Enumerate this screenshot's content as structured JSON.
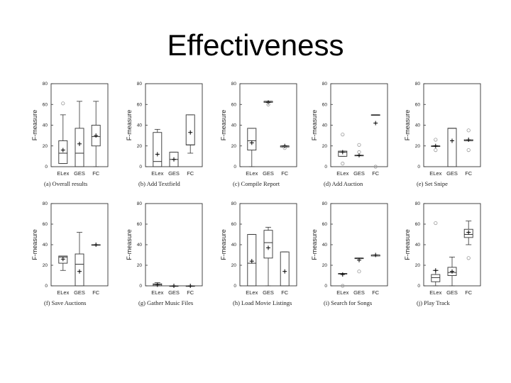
{
  "slide": {
    "title": "Effectiveness"
  },
  "colors": {
    "stroke": "#333333",
    "outlier": "#999999",
    "text": "#222222"
  },
  "chart_data": [
    {
      "type": "boxplot",
      "caption": "(a) Overall results",
      "ylabel": "F-measure",
      "ylim": [
        0,
        80
      ],
      "yticks": [
        0,
        20,
        40,
        60,
        80
      ],
      "categories": [
        "ELex",
        "GES",
        "FC"
      ],
      "boxes": [
        {
          "min": 3,
          "q1": 3,
          "median": 13,
          "q3": 25,
          "max": 50,
          "mean": 16,
          "outliers": [
            61
          ]
        },
        {
          "min": 0,
          "q1": 0,
          "median": 13,
          "q3": 37,
          "max": 63,
          "mean": 22,
          "outliers": []
        },
        {
          "min": 0,
          "q1": 20,
          "median": 29,
          "q3": 40,
          "max": 63,
          "mean": 30,
          "outliers": []
        }
      ]
    },
    {
      "type": "boxplot",
      "caption": "(b) Add Textfield",
      "ylabel": "F-measure",
      "ylim": [
        0,
        80
      ],
      "yticks": [
        0,
        20,
        40,
        60,
        80
      ],
      "categories": [
        "ELex",
        "GES",
        "FC"
      ],
      "boxes": [
        {
          "min": 0,
          "q1": 0,
          "median": 5,
          "q3": 33,
          "max": 36,
          "mean": 12,
          "outliers": []
        },
        {
          "min": 0,
          "q1": 0,
          "median": 7,
          "q3": 14,
          "max": 14,
          "mean": 7,
          "outliers": []
        },
        {
          "min": 13,
          "q1": 21,
          "median": 21,
          "q3": 50,
          "max": 50,
          "mean": 33,
          "outliers": []
        }
      ]
    },
    {
      "type": "boxplot",
      "caption": "(c) Compile Report",
      "ylabel": "F-measure",
      "ylim": [
        0,
        80
      ],
      "yticks": [
        0,
        20,
        40,
        60,
        80
      ],
      "categories": [
        "ELex",
        "GES",
        "FC"
      ],
      "boxes": [
        {
          "min": 0,
          "q1": 16,
          "median": 25,
          "q3": 37,
          "max": 37,
          "mean": 23,
          "outliers": []
        },
        {
          "min": 62,
          "q1": 62,
          "median": 63,
          "q3": 63,
          "max": 63,
          "mean": 62,
          "outliers": [
            60
          ]
        },
        {
          "min": 19,
          "q1": 19,
          "median": 20,
          "q3": 20,
          "max": 20,
          "mean": 20,
          "outliers": [
            18
          ]
        }
      ]
    },
    {
      "type": "boxplot",
      "caption": "(d) Add Auction",
      "ylabel": "F-measure",
      "ylim": [
        0,
        80
      ],
      "yticks": [
        0,
        20,
        40,
        60,
        80
      ],
      "categories": [
        "ELex",
        "GES",
        "FC"
      ],
      "boxes": [
        {
          "min": 10,
          "q1": 10,
          "median": 14,
          "q3": 15,
          "max": 15,
          "mean": 14,
          "outliers": [
            31,
            3
          ]
        },
        {
          "min": 11,
          "q1": 11,
          "median": 11,
          "q3": 11,
          "max": 11,
          "mean": 11,
          "outliers": [
            21,
            14
          ]
        },
        {
          "min": 50,
          "q1": 50,
          "median": 50,
          "q3": 50,
          "max": 50,
          "mean": 42,
          "outliers": [
            0
          ]
        }
      ]
    },
    {
      "type": "boxplot",
      "caption": "(e) Set Snipe",
      "ylabel": "F-measure",
      "ylim": [
        0,
        80
      ],
      "yticks": [
        0,
        20,
        40,
        60,
        80
      ],
      "categories": [
        "ELex",
        "GES",
        "FC"
      ],
      "boxes": [
        {
          "min": 20,
          "q1": 20,
          "median": 20,
          "q3": 20,
          "max": 20,
          "mean": 20,
          "outliers": [
            26,
            16
          ]
        },
        {
          "min": 0,
          "q1": 0,
          "median": 37,
          "q3": 37,
          "max": 37,
          "mean": 25,
          "outliers": []
        },
        {
          "min": 25,
          "q1": 25,
          "median": 25,
          "q3": 26,
          "max": 26,
          "mean": 26,
          "outliers": [
            35,
            16
          ]
        }
      ]
    },
    {
      "type": "boxplot",
      "caption": "(f) Save Auctions",
      "ylabel": "F-measure",
      "ylim": [
        0,
        80
      ],
      "yticks": [
        0,
        20,
        40,
        60,
        80
      ],
      "categories": [
        "ELex",
        "GES",
        "FC"
      ],
      "boxes": [
        {
          "min": 15,
          "q1": 22,
          "median": 28,
          "q3": 29,
          "max": 29,
          "mean": 26,
          "outliers": []
        },
        {
          "min": 0,
          "q1": 0,
          "median": 21,
          "q3": 31,
          "max": 52,
          "mean": 14,
          "outliers": []
        },
        {
          "min": 40,
          "q1": 40,
          "median": 40,
          "q3": 40,
          "max": 40,
          "mean": 40,
          "outliers": []
        }
      ]
    },
    {
      "type": "boxplot",
      "caption": "(g) Gather Music Files",
      "ylabel": "F-measure",
      "ylim": [
        0,
        80
      ],
      "yticks": [
        0,
        20,
        40,
        60,
        80
      ],
      "categories": [
        "ELex",
        "GES",
        "FC"
      ],
      "boxes": [
        {
          "min": 0,
          "q1": 0,
          "median": 1,
          "q3": 2,
          "max": 3,
          "mean": 1,
          "outliers": []
        },
        {
          "min": 0,
          "q1": 0,
          "median": 0,
          "q3": 0,
          "max": 0,
          "mean": 0,
          "outliers": []
        },
        {
          "min": 0,
          "q1": 0,
          "median": 0,
          "q3": 0,
          "max": 0,
          "mean": 0,
          "outliers": []
        }
      ]
    },
    {
      "type": "boxplot",
      "caption": "(h) Load Movie Listings",
      "ylabel": "F-measure",
      "ylim": [
        0,
        80
      ],
      "yticks": [
        0,
        20,
        40,
        60,
        80
      ],
      "categories": [
        "ELex",
        "GES",
        "FC"
      ],
      "boxes": [
        {
          "min": 0,
          "q1": 0,
          "median": 22,
          "q3": 50,
          "max": 50,
          "mean": 24,
          "outliers": []
        },
        {
          "min": 0,
          "q1": 27,
          "median": 42,
          "q3": 54,
          "max": 57,
          "mean": 37,
          "outliers": []
        },
        {
          "min": 0,
          "q1": 0,
          "median": 0,
          "q3": 33,
          "max": 33,
          "mean": 14,
          "outliers": []
        }
      ]
    },
    {
      "type": "boxplot",
      "caption": "(i) Search for Songs",
      "ylabel": "F-measure",
      "ylim": [
        0,
        80
      ],
      "yticks": [
        0,
        20,
        40,
        60,
        80
      ],
      "categories": [
        "ELex",
        "GES",
        "FC"
      ],
      "boxes": [
        {
          "min": 12,
          "q1": 12,
          "median": 12,
          "q3": 12,
          "max": 12,
          "mean": 11,
          "outliers": [
            0
          ]
        },
        {
          "min": 27,
          "q1": 27,
          "median": 27,
          "q3": 27,
          "max": 27,
          "mean": 25,
          "outliers": [
            14
          ]
        },
        {
          "min": 29,
          "q1": 29,
          "median": 30,
          "q3": 30,
          "max": 30,
          "mean": 30,
          "outliers": []
        }
      ]
    },
    {
      "type": "boxplot",
      "caption": "(j) Play Track",
      "ylabel": "F-measure",
      "ylim": [
        0,
        80
      ],
      "yticks": [
        0,
        20,
        40,
        60,
        80
      ],
      "categories": [
        "ELex",
        "GES",
        "FC"
      ],
      "boxes": [
        {
          "min": 0,
          "q1": 4,
          "median": 8,
          "q3": 11,
          "max": 15,
          "mean": 15,
          "outliers": [
            61
          ]
        },
        {
          "min": 0,
          "q1": 10,
          "median": 13,
          "q3": 18,
          "max": 28,
          "mean": 14,
          "outliers": []
        },
        {
          "min": 40,
          "q1": 47,
          "median": 50,
          "q3": 55,
          "max": 63,
          "mean": 52,
          "outliers": [
            27
          ]
        }
      ]
    }
  ]
}
